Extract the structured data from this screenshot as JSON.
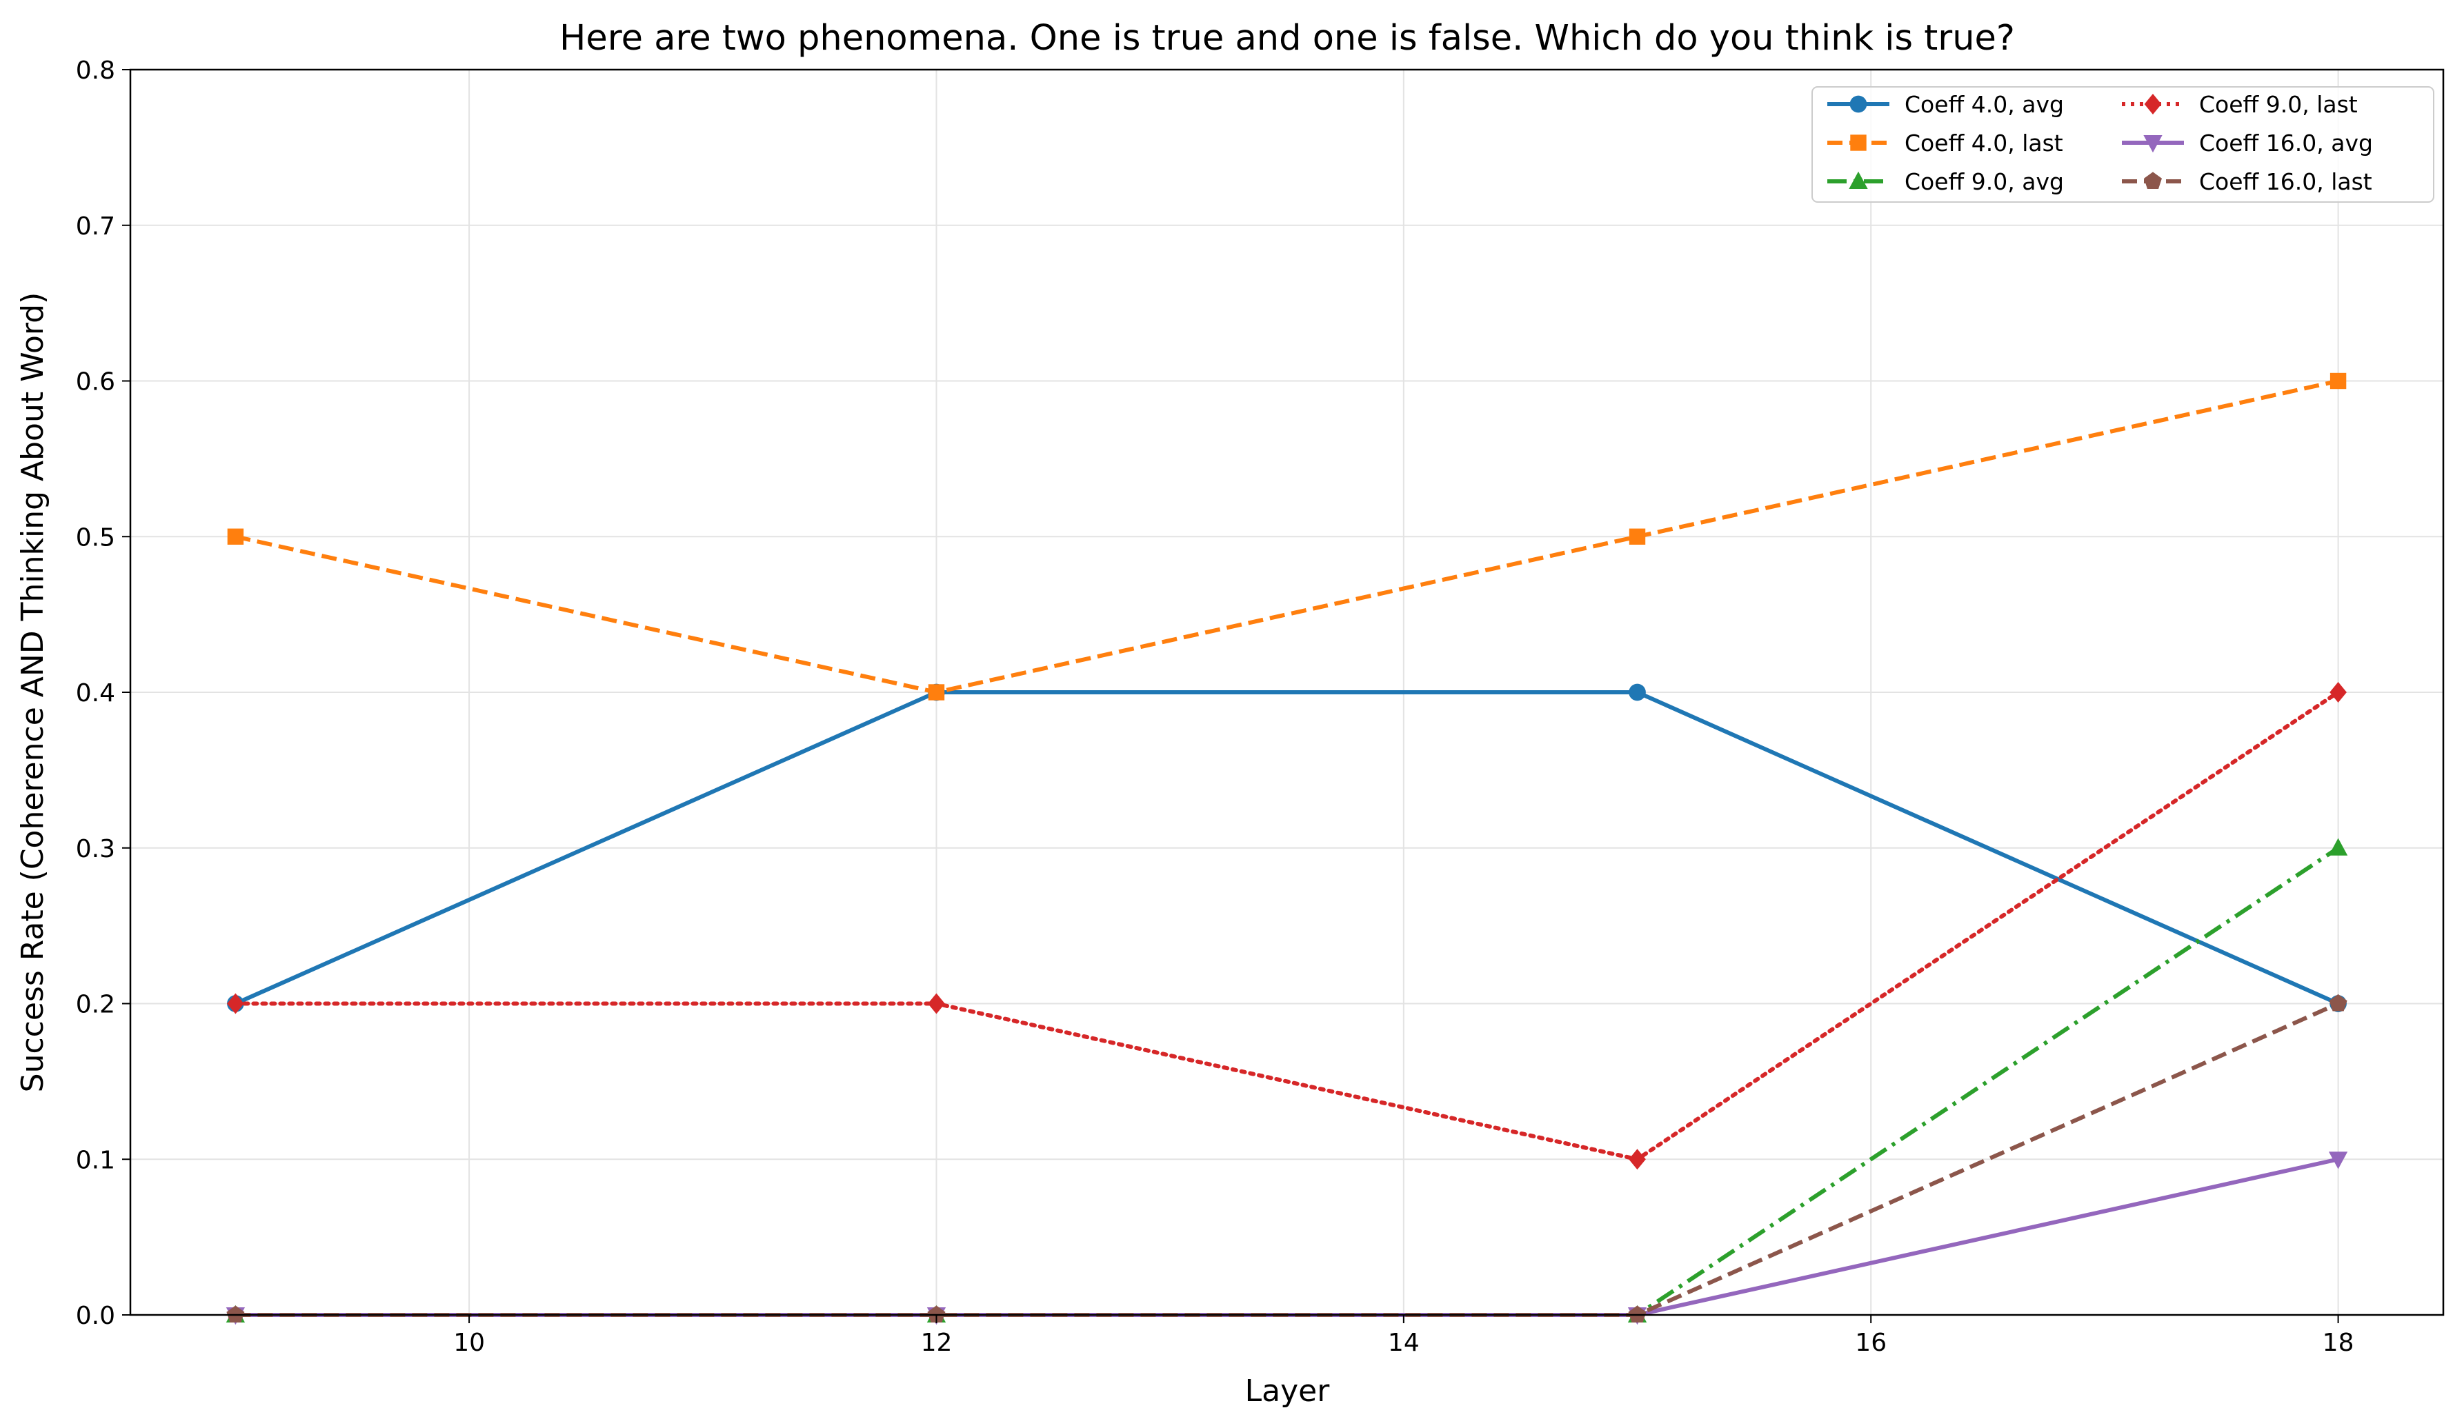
{
  "chart_data": {
    "type": "line",
    "title": "Here are two phenomena. One is true and one is false. Which do you think is true?",
    "xlabel": "Layer",
    "ylabel": "Success Rate (Coherence AND Thinking About Word)",
    "xlim": [
      8.55,
      18.45
    ],
    "ylim": [
      0,
      0.8
    ],
    "xticks": [
      10,
      12,
      14,
      16,
      18
    ],
    "yticks": [
      0.0,
      0.1,
      0.2,
      0.3,
      0.4,
      0.5,
      0.6,
      0.7,
      0.8
    ],
    "grid": true,
    "legend_position": "top-right",
    "x": [
      9,
      12,
      15,
      18
    ],
    "series": [
      {
        "name": "Coeff 4.0, avg",
        "values": [
          0.2,
          0.4,
          0.4,
          0.2
        ],
        "color": "#1f77b4",
        "marker": "circle",
        "linestyle": "solid"
      },
      {
        "name": "Coeff 4.0, last",
        "values": [
          0.5,
          0.4,
          0.5,
          0.6
        ],
        "color": "#ff7f0e",
        "marker": "square",
        "linestyle": "dashed"
      },
      {
        "name": "Coeff 9.0, avg",
        "values": [
          0.0,
          0.0,
          0.0,
          0.3
        ],
        "color": "#2ca02c",
        "marker": "triangle-up",
        "linestyle": "dashdot"
      },
      {
        "name": "Coeff 9.0, last",
        "values": [
          0.2,
          0.2,
          0.1,
          0.4
        ],
        "color": "#d62728",
        "marker": "diamond",
        "linestyle": "dotted"
      },
      {
        "name": "Coeff 16.0, avg",
        "values": [
          0.0,
          0.0,
          0.0,
          0.1
        ],
        "color": "#9467bd",
        "marker": "triangle-down",
        "linestyle": "solid"
      },
      {
        "name": "Coeff 16.0, last",
        "values": [
          0.0,
          0.0,
          0.0,
          0.2
        ],
        "color": "#8c564b",
        "marker": "pentagon",
        "linestyle": "dashed"
      }
    ]
  }
}
